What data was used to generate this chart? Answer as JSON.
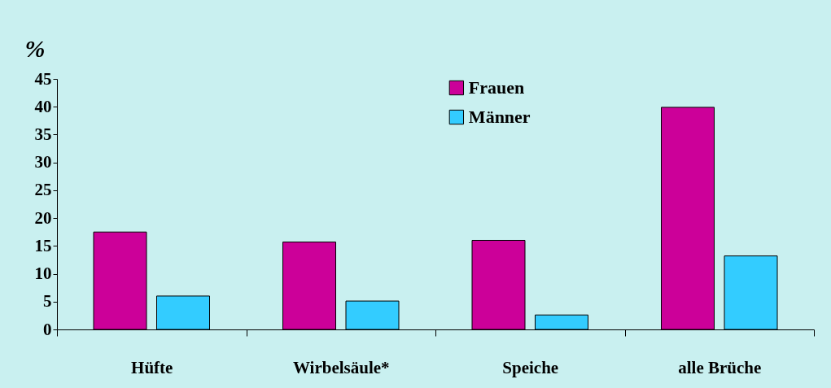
{
  "chart_data": {
    "type": "bar",
    "ylabel": "%",
    "categories": [
      "Hüfte",
      "Wirbelsäule*",
      "Speiche",
      "alle Brüche"
    ],
    "series": [
      {
        "name": "Frauen",
        "color": "#cc0099",
        "values": [
          17.5,
          15.7,
          16.0,
          39.9
        ]
      },
      {
        "name": "Männer",
        "color": "#33ccff",
        "values": [
          6.0,
          5.1,
          2.6,
          13.2
        ]
      }
    ],
    "ylim": [
      0,
      45
    ],
    "yticks": [
      0,
      5,
      10,
      15,
      20,
      25,
      30,
      35,
      40,
      45
    ],
    "legend": "top",
    "grid": false
  }
}
